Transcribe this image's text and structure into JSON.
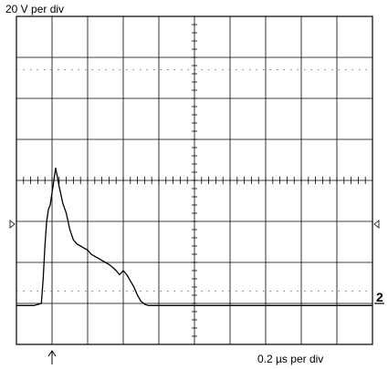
{
  "chart_data": {
    "type": "line",
    "title": "",
    "vertical_scale_label": "20 V per div",
    "horizontal_scale_label": "0.2 µs per div",
    "channel_marker": "2",
    "grid": true,
    "divisions": {
      "x": 10,
      "y": 8
    },
    "x_unit": "divisions (0.2 µs per div)",
    "y_unit": "divisions (20 V per div)",
    "xlim": [
      0,
      10
    ],
    "ylim": [
      -4,
      4
    ],
    "series": [
      {
        "x": [
          0,
          0.5,
          0.7,
          0.75,
          0.8,
          0.85,
          0.9,
          0.95,
          1.0,
          1.05,
          1.1,
          1.15,
          1.2,
          1.25,
          1.3,
          1.4,
          1.5,
          1.6,
          1.7,
          1.8,
          1.9,
          2.0,
          2.1,
          2.2,
          2.3,
          2.4,
          2.5,
          2.6,
          2.7,
          2.8,
          2.9,
          3.0,
          3.1,
          3.2,
          3.3,
          3.4,
          3.5,
          3.6,
          3.7,
          3.8,
          4.0,
          5.0,
          6.0,
          7.0,
          8.0,
          9.0,
          10.0
        ],
        "y": [
          -3.05,
          -3.05,
          -3.0,
          -2.4,
          -1.6,
          -1.0,
          -0.7,
          -0.6,
          -0.3,
          0.0,
          0.3,
          0.1,
          -0.15,
          -0.35,
          -0.55,
          -0.8,
          -1.2,
          -1.45,
          -1.55,
          -1.6,
          -1.65,
          -1.7,
          -1.8,
          -1.85,
          -1.9,
          -1.95,
          -2.0,
          -2.05,
          -2.12,
          -2.2,
          -2.3,
          -2.2,
          -2.3,
          -2.45,
          -2.6,
          -2.8,
          -2.95,
          -3.02,
          -3.05,
          -3.05,
          -3.05,
          -3.05,
          -3.05,
          -3.05,
          -3.05,
          -3.05,
          -3.05
        ]
      }
    ]
  }
}
